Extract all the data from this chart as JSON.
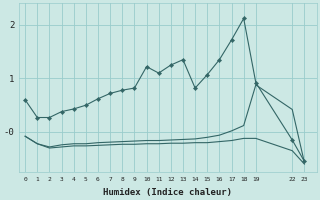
{
  "xlabel": "Humidex (Indice chaleur)",
  "bg_color": "#cce8e4",
  "grid_color": "#99cccc",
  "line_color": "#336666",
  "xlim": [
    -0.5,
    24.0
  ],
  "ylim": [
    -0.75,
    2.4
  ],
  "xtick_vals": [
    0,
    1,
    2,
    3,
    4,
    5,
    6,
    7,
    8,
    9,
    10,
    11,
    12,
    13,
    14,
    15,
    16,
    17,
    18,
    19,
    22,
    23
  ],
  "xtick_labels": [
    "0",
    "1",
    "2",
    "3",
    "4",
    "5",
    "6",
    "7",
    "8",
    "9",
    "10",
    "11",
    "12",
    "13",
    "14",
    "15",
    "16",
    "17",
    "18",
    "19",
    "22",
    "23"
  ],
  "ytick_vals": [
    0.0,
    1.0,
    2.0
  ],
  "ytick_labels": [
    "-0",
    "1",
    "2"
  ],
  "s1_x": [
    0,
    1,
    2,
    3,
    4,
    5,
    6,
    7,
    8,
    9,
    10,
    11,
    12,
    13,
    14,
    15,
    16,
    17,
    18,
    19,
    22,
    23
  ],
  "s1_y": [
    0.6,
    0.27,
    0.27,
    0.38,
    0.43,
    0.5,
    0.62,
    0.72,
    0.78,
    0.82,
    1.22,
    1.1,
    1.25,
    1.35,
    0.82,
    1.07,
    1.35,
    1.72,
    2.12,
    0.92,
    -0.15,
    -0.55
  ],
  "s2_x": [
    0,
    1,
    2,
    3,
    4,
    5,
    6,
    7,
    8,
    9,
    10,
    11,
    12,
    13,
    14,
    15,
    16,
    17,
    18,
    19,
    22,
    23
  ],
  "s2_y": [
    -0.08,
    -0.22,
    -0.28,
    -0.24,
    -0.22,
    -0.22,
    -0.2,
    -0.19,
    -0.18,
    -0.17,
    -0.16,
    -0.16,
    -0.15,
    -0.14,
    -0.13,
    -0.1,
    -0.06,
    0.02,
    0.12,
    0.88,
    0.42,
    -0.57
  ],
  "s3_x": [
    0,
    1,
    2,
    3,
    4,
    5,
    6,
    7,
    8,
    9,
    10,
    11,
    12,
    13,
    14,
    15,
    16,
    17,
    18,
    19,
    22,
    23
  ],
  "s3_y": [
    -0.08,
    -0.22,
    -0.3,
    -0.28,
    -0.26,
    -0.26,
    -0.25,
    -0.24,
    -0.23,
    -0.23,
    -0.22,
    -0.22,
    -0.21,
    -0.21,
    -0.2,
    -0.2,
    -0.18,
    -0.16,
    -0.12,
    -0.12,
    -0.35,
    -0.6
  ]
}
